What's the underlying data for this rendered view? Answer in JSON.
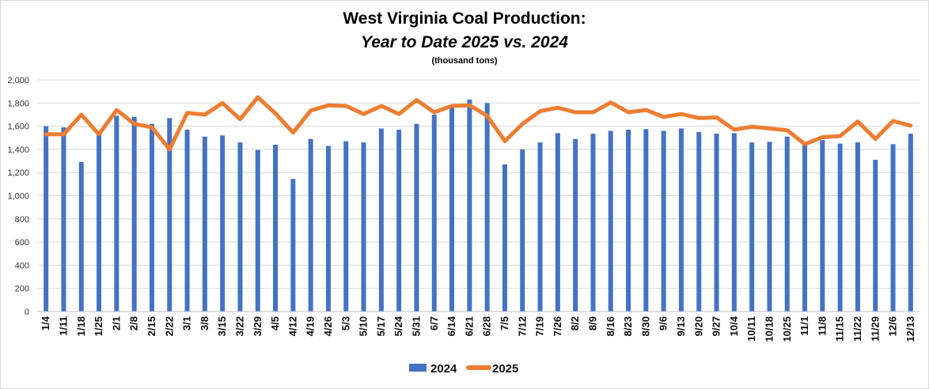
{
  "chart_data": {
    "type": "bar",
    "title": "West Virginia Coal Production:",
    "subtitle": "Year to Date 2025 vs. 2024",
    "unit_note": "(thousand tons)",
    "ylim": [
      0,
      2000
    ],
    "yticks": [
      "0",
      "200",
      "400",
      "600",
      "800",
      "1,000",
      "1,200",
      "1,400",
      "1,600",
      "1,800",
      "2,000"
    ],
    "ytick_values": [
      0,
      200,
      400,
      600,
      800,
      1000,
      1200,
      1400,
      1600,
      1800,
      2000
    ],
    "grid": true,
    "legend_position": "bottom",
    "colors": {
      "bar_2024": "#4472c4",
      "line_2025": "#ed7d31",
      "grid": "#d9d9d9",
      "frame": "#d9d9d9"
    },
    "categories": [
      "1/4",
      "1/11",
      "1/18",
      "1/25",
      "2/1",
      "2/8",
      "2/15",
      "2/22",
      "3/1",
      "3/8",
      "3/15",
      "3/22",
      "3/29",
      "4/5",
      "4/12",
      "4/19",
      "4/26",
      "5/3",
      "5/10",
      "5/17",
      "5/24",
      "5/31",
      "6/7",
      "6/14",
      "6/21",
      "6/28",
      "7/5",
      "7/12",
      "7/19",
      "7/26",
      "8/2",
      "8/9",
      "8/16",
      "8/23",
      "8/30",
      "9/6",
      "9/13",
      "9/20",
      "9/27",
      "10/4",
      "10/11",
      "10/18",
      "10/25",
      "11/1",
      "11/8",
      "11/15",
      "11/22",
      "11/29",
      "12/6",
      "12/13"
    ],
    "series": [
      {
        "name": "2024",
        "kind": "bar",
        "values": [
          1600,
          1590,
          1290,
          1550,
          1690,
          1680,
          1620,
          1670,
          1570,
          1510,
          1520,
          1460,
          1395,
          1440,
          1145,
          1490,
          1430,
          1470,
          1460,
          1580,
          1570,
          1620,
          1700,
          1780,
          1830,
          1800,
          1270,
          1400,
          1460,
          1540,
          1490,
          1535,
          1560,
          1570,
          1575,
          1560,
          1580,
          1550,
          1535,
          1540,
          1460,
          1465,
          1510,
          1450,
          1480,
          1450,
          1460,
          1310,
          1445,
          1535
        ]
      },
      {
        "name": "2025",
        "kind": "line",
        "values": [
          1530,
          1530,
          1700,
          1530,
          1740,
          1620,
          1590,
          1400,
          1715,
          1700,
          1800,
          1660,
          1850,
          1710,
          1545,
          1735,
          1780,
          1775,
          1705,
          1775,
          1705,
          1825,
          1720,
          1775,
          1780,
          1690,
          1470,
          1620,
          1730,
          1760,
          1720,
          1720,
          1805,
          1720,
          1740,
          1680,
          1705,
          1670,
          1675,
          1570,
          1595,
          1580,
          1565,
          1445,
          1505,
          1515,
          1640,
          1490,
          1645,
          1605
        ]
      }
    ]
  }
}
